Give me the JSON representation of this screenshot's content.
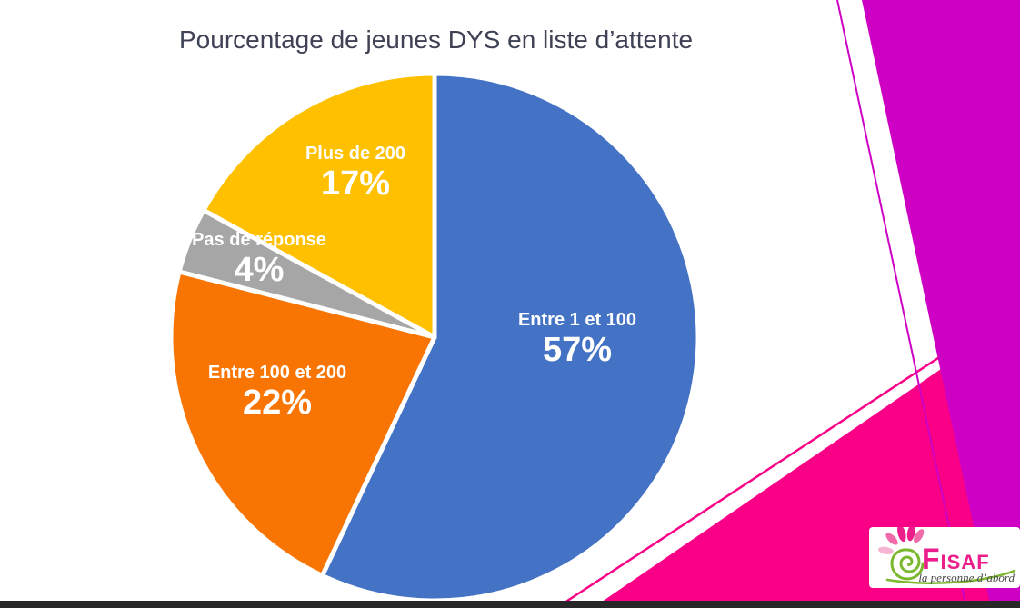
{
  "title": "Pourcentage de jeunes DYS en liste d’attente",
  "chart_data": {
    "type": "pie",
    "title": "Pourcentage de jeunes DYS en liste d’attente",
    "legend": "none",
    "data_labels": "inside",
    "start_angle_deg": -90,
    "direction": "clockwise",
    "slices": [
      {
        "label": "Entre 1 et 100",
        "value": 57,
        "pct_label": "57%",
        "color": "#4472C4"
      },
      {
        "label": "Entre 100 et 200",
        "value": 22,
        "pct_label": "22%",
        "color": "#F97503"
      },
      {
        "label": "Pas de réponse",
        "value": 4,
        "pct_label": "4%",
        "color": "#A6A6A6"
      },
      {
        "label": "Plus de 200",
        "value": 17,
        "pct_label": "17%",
        "color": "#FFC000"
      }
    ]
  },
  "logo": {
    "text": "Fisaf",
    "tagline": "la personne d’abord",
    "pink": "#EC1E8C",
    "green": "#7CB82F"
  },
  "decor": {
    "magenta_band": "#CE00C4",
    "hot_pink": "#FA0087",
    "bottom_bar": "#272727",
    "title_color": "#3F4254"
  }
}
